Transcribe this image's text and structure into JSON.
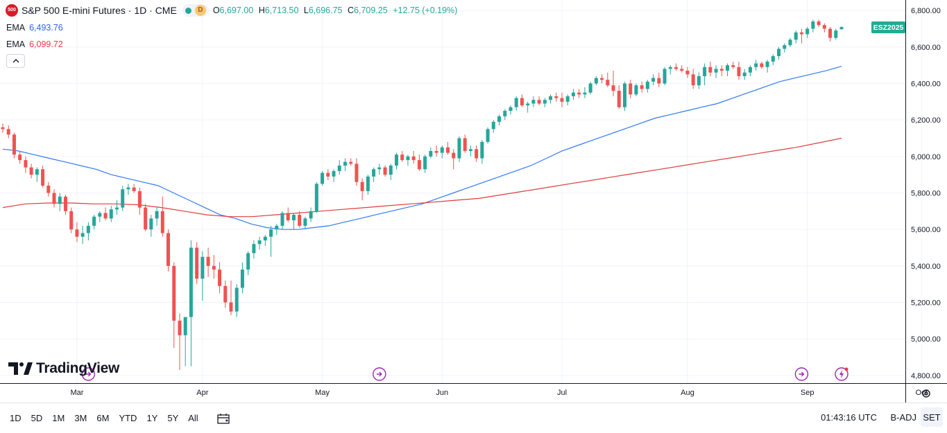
{
  "header": {
    "symbol_badge": "500",
    "title": "S&P 500 E-mini Futures · 1D · CME",
    "status_letter": "D",
    "ohlc": {
      "open_label": "O",
      "open": "6,697.00",
      "high_label": "H",
      "high": "6,713.50",
      "low_label": "L",
      "low": "6,696.75",
      "close_label": "C",
      "close": "6,709.25",
      "change": "+12.75 (+0.19%)"
    },
    "ema1": {
      "label": "EMA",
      "value": "6,493.76",
      "color": "#2962ff"
    },
    "ema2": {
      "label": "EMA",
      "value": "6,099.72",
      "color": "#f23645"
    },
    "collapse_icon": "chevron-up-icon"
  },
  "contract_badge": "ESZ2025",
  "logo_text": "TradingView",
  "colors": {
    "up": "#26a69a",
    "down": "#ef5350",
    "ema_fast": "#3179f5",
    "ema_slow": "#e23b3b",
    "grid": "#f0f3fa",
    "marker": "#9c27b0"
  },
  "chart_data": {
    "type": "candlestick",
    "timeframe": "1D",
    "ylim": [
      4750,
      6850
    ],
    "y_ticks": [
      "6,800.00",
      "6,600.00",
      "6,400.00",
      "6,200.00",
      "6,000.00",
      "5,800.00",
      "5,600.00",
      "5,400.00",
      "5,200.00",
      "5,000.00",
      "4,800.00"
    ],
    "y_tick_values": [
      6800,
      6600,
      6400,
      6200,
      6000,
      5800,
      5600,
      5400,
      5200,
      5000,
      4800
    ],
    "x_ticks": [
      "Mar",
      "Apr",
      "May",
      "Jun",
      "Jul",
      "Aug",
      "Sep",
      "Oct"
    ],
    "candles": [
      [
        6160,
        6180,
        6130,
        6150
      ],
      [
        6150,
        6170,
        6100,
        6120
      ],
      [
        6120,
        6130,
        5990,
        6010
      ],
      [
        6010,
        6030,
        5960,
        5980
      ],
      [
        5980,
        6000,
        5910,
        5940
      ],
      [
        5940,
        5960,
        5880,
        5900
      ],
      [
        5900,
        5940,
        5860,
        5930
      ],
      [
        5930,
        5950,
        5830,
        5840
      ],
      [
        5840,
        5860,
        5780,
        5800
      ],
      [
        5800,
        5820,
        5720,
        5740
      ],
      [
        5740,
        5800,
        5700,
        5780
      ],
      [
        5780,
        5790,
        5680,
        5700
      ],
      [
        5700,
        5720,
        5580,
        5600
      ],
      [
        5600,
        5640,
        5530,
        5560
      ],
      [
        5560,
        5620,
        5520,
        5580
      ],
      [
        5580,
        5640,
        5540,
        5620
      ],
      [
        5620,
        5680,
        5600,
        5670
      ],
      [
        5670,
        5700,
        5640,
        5690
      ],
      [
        5690,
        5720,
        5650,
        5660
      ],
      [
        5660,
        5730,
        5640,
        5710
      ],
      [
        5710,
        5760,
        5680,
        5720
      ],
      [
        5720,
        5840,
        5700,
        5820
      ],
      [
        5820,
        5850,
        5790,
        5830
      ],
      [
        5830,
        5850,
        5800,
        5810
      ],
      [
        5810,
        5830,
        5680,
        5720
      ],
      [
        5720,
        5740,
        5590,
        5600
      ],
      [
        5600,
        5680,
        5560,
        5660
      ],
      [
        5660,
        5720,
        5620,
        5700
      ],
      [
        5700,
        5780,
        5560,
        5580
      ],
      [
        5580,
        5600,
        5370,
        5400
      ],
      [
        5400,
        5420,
        4950,
        5100
      ],
      [
        5100,
        5140,
        4830,
        5020
      ],
      [
        5020,
        5100,
        4850,
        5120
      ],
      [
        5120,
        5540,
        4850,
        5500
      ],
      [
        5500,
        5530,
        5300,
        5330
      ],
      [
        5330,
        5480,
        5210,
        5450
      ],
      [
        5450,
        5500,
        5340,
        5400
      ],
      [
        5400,
        5460,
        5330,
        5380
      ],
      [
        5380,
        5420,
        5250,
        5290
      ],
      [
        5290,
        5320,
        5170,
        5200
      ],
      [
        5200,
        5320,
        5130,
        5150
      ],
      [
        5150,
        5300,
        5120,
        5280
      ],
      [
        5280,
        5420,
        5250,
        5380
      ],
      [
        5380,
        5480,
        5350,
        5470
      ],
      [
        5470,
        5540,
        5440,
        5520
      ],
      [
        5520,
        5560,
        5490,
        5540
      ],
      [
        5540,
        5570,
        5510,
        5560
      ],
      [
        5560,
        5620,
        5450,
        5600
      ],
      [
        5600,
        5630,
        5570,
        5620
      ],
      [
        5620,
        5700,
        5600,
        5690
      ],
      [
        5690,
        5720,
        5640,
        5650
      ],
      [
        5650,
        5690,
        5600,
        5680
      ],
      [
        5680,
        5700,
        5610,
        5620
      ],
      [
        5620,
        5670,
        5600,
        5660
      ],
      [
        5660,
        5720,
        5640,
        5700
      ],
      [
        5700,
        5860,
        5690,
        5850
      ],
      [
        5850,
        5920,
        5840,
        5910
      ],
      [
        5910,
        5930,
        5870,
        5890
      ],
      [
        5890,
        5930,
        5860,
        5920
      ],
      [
        5920,
        5980,
        5900,
        5950
      ],
      [
        5950,
        5990,
        5920,
        5970
      ],
      [
        5970,
        5990,
        5950,
        5960
      ],
      [
        5960,
        5990,
        5840,
        5860
      ],
      [
        5860,
        5880,
        5760,
        5810
      ],
      [
        5810,
        5900,
        5790,
        5890
      ],
      [
        5890,
        5940,
        5860,
        5930
      ],
      [
        5930,
        5960,
        5900,
        5940
      ],
      [
        5940,
        5950,
        5890,
        5900
      ],
      [
        5900,
        5960,
        5870,
        5950
      ],
      [
        5950,
        6020,
        5930,
        6010
      ],
      [
        6010,
        6030,
        5970,
        5980
      ],
      [
        5980,
        6010,
        5950,
        6000
      ],
      [
        6000,
        6030,
        5960,
        5980
      ],
      [
        5980,
        6010,
        5920,
        5930
      ],
      [
        5930,
        6010,
        5910,
        6000
      ],
      [
        6000,
        6050,
        5990,
        6030
      ],
      [
        6030,
        6060,
        6000,
        6020
      ],
      [
        6020,
        6060,
        5990,
        6050
      ],
      [
        6050,
        6080,
        6010,
        6020
      ],
      [
        6020,
        6040,
        5930,
        5990
      ],
      [
        5990,
        6110,
        5970,
        6100
      ],
      [
        6100,
        6120,
        6020,
        6030
      ],
      [
        6030,
        6060,
        6000,
        6040
      ],
      [
        6040,
        6060,
        5970,
        5990
      ],
      [
        5990,
        6090,
        5960,
        6080
      ],
      [
        6080,
        6160,
        6070,
        6150
      ],
      [
        6150,
        6200,
        6130,
        6190
      ],
      [
        6190,
        6230,
        6170,
        6220
      ],
      [
        6220,
        6260,
        6200,
        6250
      ],
      [
        6250,
        6280,
        6230,
        6270
      ],
      [
        6270,
        6330,
        6250,
        6320
      ],
      [
        6320,
        6340,
        6270,
        6280
      ],
      [
        6280,
        6300,
        6240,
        6290
      ],
      [
        6290,
        6330,
        6270,
        6310
      ],
      [
        6310,
        6330,
        6280,
        6290
      ],
      [
        6290,
        6320,
        6270,
        6310
      ],
      [
        6310,
        6340,
        6290,
        6330
      ],
      [
        6330,
        6350,
        6300,
        6320
      ],
      [
        6320,
        6350,
        6270,
        6300
      ],
      [
        6300,
        6340,
        6280,
        6330
      ],
      [
        6330,
        6370,
        6310,
        6350
      ],
      [
        6350,
        6370,
        6320,
        6340
      ],
      [
        6340,
        6380,
        6320,
        6350
      ],
      [
        6350,
        6410,
        6340,
        6400
      ],
      [
        6400,
        6440,
        6390,
        6430
      ],
      [
        6430,
        6450,
        6400,
        6420
      ],
      [
        6420,
        6460,
        6380,
        6390
      ],
      [
        6390,
        6470,
        6330,
        6360
      ],
      [
        6360,
        6390,
        6260,
        6270
      ],
      [
        6270,
        6410,
        6250,
        6400
      ],
      [
        6400,
        6420,
        6320,
        6340
      ],
      [
        6340,
        6400,
        6330,
        6390
      ],
      [
        6390,
        6410,
        6350,
        6370
      ],
      [
        6370,
        6420,
        6350,
        6410
      ],
      [
        6410,
        6450,
        6390,
        6430
      ],
      [
        6430,
        6460,
        6380,
        6400
      ],
      [
        6400,
        6490,
        6390,
        6480
      ],
      [
        6480,
        6500,
        6450,
        6490
      ],
      [
        6490,
        6510,
        6470,
        6480
      ],
      [
        6480,
        6500,
        6460,
        6470
      ],
      [
        6470,
        6490,
        6430,
        6450
      ],
      [
        6450,
        6480,
        6370,
        6390
      ],
      [
        6390,
        6460,
        6370,
        6440
      ],
      [
        6440,
        6510,
        6390,
        6490
      ],
      [
        6490,
        6520,
        6440,
        6460
      ],
      [
        6460,
        6500,
        6430,
        6480
      ],
      [
        6480,
        6500,
        6440,
        6470
      ],
      [
        6470,
        6510,
        6440,
        6500
      ],
      [
        6500,
        6520,
        6480,
        6490
      ],
      [
        6490,
        6520,
        6420,
        6440
      ],
      [
        6440,
        6480,
        6420,
        6460
      ],
      [
        6460,
        6500,
        6440,
        6490
      ],
      [
        6490,
        6530,
        6470,
        6510
      ],
      [
        6510,
        6520,
        6480,
        6490
      ],
      [
        6490,
        6530,
        6460,
        6520
      ],
      [
        6520,
        6560,
        6500,
        6550
      ],
      [
        6550,
        6600,
        6530,
        6590
      ],
      [
        6590,
        6620,
        6570,
        6610
      ],
      [
        6610,
        6650,
        6600,
        6640
      ],
      [
        6640,
        6690,
        6620,
        6680
      ],
      [
        6680,
        6700,
        6620,
        6670
      ],
      [
        6670,
        6710,
        6650,
        6700
      ],
      [
        6700,
        6750,
        6680,
        6740
      ],
      [
        6740,
        6750,
        6710,
        6720
      ],
      [
        6720,
        6730,
        6680,
        6700
      ],
      [
        6700,
        6710,
        6630,
        6650
      ],
      [
        6650,
        6700,
        6640,
        6690
      ],
      [
        6697,
        6713.5,
        6696.75,
        6709.25
      ]
    ],
    "ema_fast": [
      6040,
      6030,
      6010,
      5990,
      5970,
      5950,
      5930,
      5900,
      5880,
      5860,
      5840,
      5800,
      5760,
      5720,
      5680,
      5660,
      5630,
      5610,
      5600,
      5600,
      5610,
      5620,
      5640,
      5660,
      5680,
      5700,
      5720,
      5740,
      5770,
      5800,
      5830,
      5860,
      5890,
      5920,
      5950,
      5990,
      6030,
      6060,
      6090,
      6120,
      6150,
      6180,
      6210,
      6230,
      6250,
      6270,
      6290,
      6320,
      6350,
      6380,
      6410,
      6430,
      6450,
      6470,
      6494
    ],
    "ema_slow": [
      5720,
      5740,
      5745,
      5745,
      5740,
      5740,
      5735,
      5720,
      5700,
      5680,
      5670,
      5670,
      5680,
      5690,
      5700,
      5710,
      5720,
      5730,
      5740,
      5750,
      5760,
      5770,
      5790,
      5810,
      5830,
      5850,
      5870,
      5890,
      5910,
      5930,
      5950,
      5970,
      5990,
      6010,
      6030,
      6050,
      6075,
      6100
    ]
  },
  "markers": [
    {
      "name": "dividend-marker-icon"
    },
    {
      "name": "dividend-marker-icon"
    },
    {
      "name": "dividend-marker-icon"
    },
    {
      "name": "earnings-marker-icon"
    }
  ],
  "bottom": {
    "ranges": [
      "1D",
      "5D",
      "1M",
      "3M",
      "6M",
      "YTD",
      "1Y",
      "5Y",
      "All"
    ],
    "time": "01:43:16 UTC",
    "adj": "B-ADJ",
    "session": "SET"
  }
}
